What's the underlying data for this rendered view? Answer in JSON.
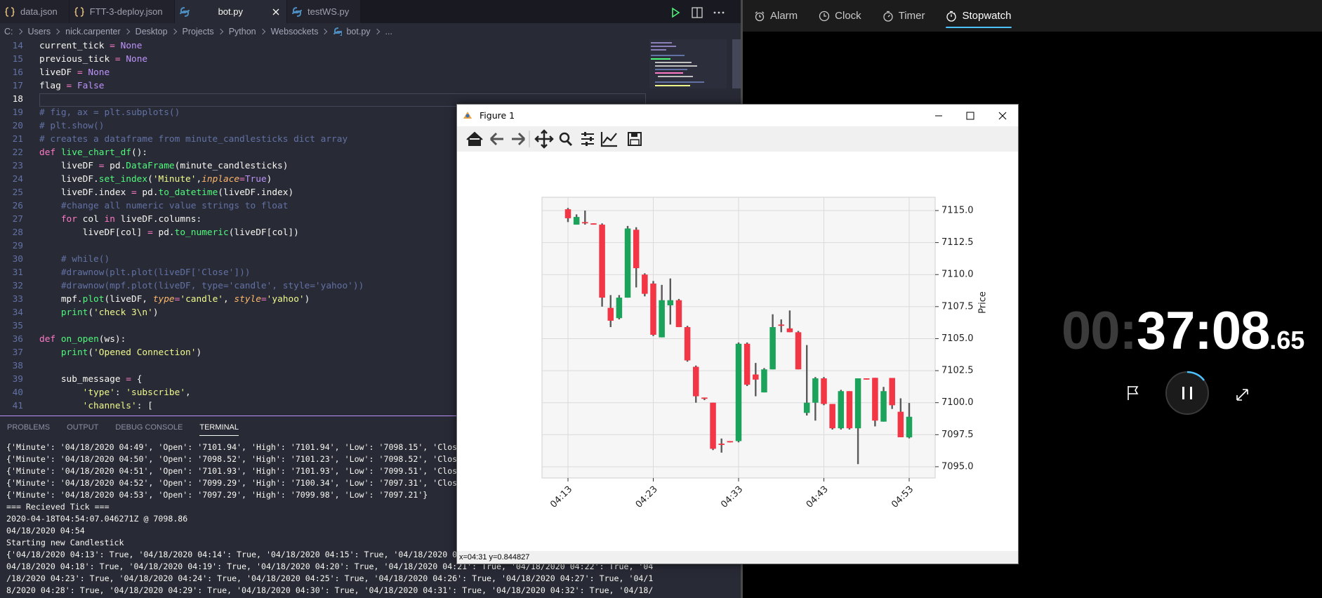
{
  "editor": {
    "tabs": [
      "data.json",
      "FTT-3-deploy.json",
      "bot.py",
      "testWS.py"
    ],
    "active_tab": 2,
    "breadcrumbs": [
      "C:",
      "Users",
      "nick.carpenter",
      "Desktop",
      "Projects",
      "Python",
      "Websockets",
      "bot.py",
      "..."
    ],
    "cursor_line": 18,
    "lines": [
      {
        "number": 14,
        "text": "current_tick = None"
      },
      {
        "number": 15,
        "text": "previous_tick = None"
      },
      {
        "number": 16,
        "text": "liveDF = None"
      },
      {
        "number": 17,
        "text": "flag = False"
      },
      {
        "number": 18
      },
      {
        "number": 19,
        "text": "# fig, ax = plt.subplots()"
      },
      {
        "number": 20,
        "text": "# plt.show()"
      },
      {
        "number": 21,
        "text": "# creates a dataframe from minute_candlesticks dict array"
      },
      {
        "number": 22,
        "text": "def live_chart_df():"
      },
      {
        "number": 23,
        "text": "    liveDF = pd.DataFrame(minute_candlesticks)"
      },
      {
        "number": 24,
        "text": "    liveDF.set_index('Minute',inplace=True)"
      },
      {
        "number": 25,
        "text": "    liveDF.index = pd.to_datetime(liveDF.index)"
      },
      {
        "number": 26,
        "text": "    #change all numeric value strings to float"
      },
      {
        "number": 27,
        "text": "    for col in liveDF.columns:"
      },
      {
        "number": 28,
        "text": "        liveDF[col] = pd.to_numeric(liveDF[col])"
      },
      {
        "number": 29
      },
      {
        "number": 30,
        "text": "    # while()"
      },
      {
        "number": 31,
        "text": "    #drawnow(plt.plot(liveDF['Close']))"
      },
      {
        "number": 32,
        "text": "    #drawnow(mpf.plot(liveDF, type='candle', style='yahoo'))"
      },
      {
        "number": 33,
        "text": "    mpf.plot(liveDF, type='candle', style='yahoo')"
      },
      {
        "number": 34,
        "text": "    print('check 3\\n')"
      },
      {
        "number": 35
      },
      {
        "number": 36,
        "text": "def on_open(ws):"
      },
      {
        "number": 37,
        "text": "    print('Opened Connection')"
      },
      {
        "number": 38
      },
      {
        "number": 39,
        "text": "    sub_message = {"
      },
      {
        "number": 40,
        "text": "        'type': 'subscribe',"
      },
      {
        "number": 41,
        "text": "        'channels': ["
      }
    ]
  },
  "panel": {
    "tabs": [
      "PROBLEMS",
      "OUTPUT",
      "DEBUG CONSOLE",
      "TERMINAL"
    ],
    "active_tab": 3,
    "terminal": [
      "{'Minute': '04/18/2020 04:49', 'Open': '7101.94', 'High': '7101.94', 'Low': '7098.15', 'Clos",
      "{'Minute': '04/18/2020 04:50', 'Open': '7098.52', 'High': '7101.23', 'Low': '7098.52', 'Clos",
      "{'Minute': '04/18/2020 04:51', 'Open': '7101.93', 'High': '7101.93', 'Low': '7099.51', 'Clos",
      "{'Minute': '04/18/2020 04:52', 'Open': '7099.29', 'High': '7100.34', 'Low': '7097.31', 'Clos",
      "{'Minute': '04/18/2020 04:53', 'Open': '7097.29', 'High': '7099.98', 'Low': '7097.21'}",
      "=== Recieved Tick ===",
      "2020-04-18T04:54:07.046271Z @ 7098.86",
      "04/18/2020 04:54",
      "Starting new Candlestick",
      "{'04/18/2020 04:13': True, '04/18/2020 04:14': True, '04/18/2020 04:15': True, '04/18/2020 0",
      "04/18/2020 04:18': True, '04/18/2020 04:19': True, '04/18/2020 04:20': True, '04/18/2020 04:21': True, '04/18/2020 04:22': True, '04",
      "/18/2020 04:23': True, '04/18/2020 04:24': True, '04/18/2020 04:25': True, '04/18/2020 04:26': True, '04/18/2020 04:27': True, '04/1",
      "8/2020 04:28': True, '04/18/2020 04:29': True, '04/18/2020 04:30': True, '04/18/2020 04:31': True, '04/18/2020 04:32': True, '04/18/"
    ]
  },
  "clock": {
    "tabs": [
      "Alarm",
      "Clock",
      "Timer",
      "Stopwatch"
    ],
    "active_tab": 3,
    "hours": "00:",
    "time": "37:08",
    "fraction": ".65"
  },
  "figure": {
    "title": "Figure 1",
    "status": "x=04:31 y=0.844827"
  },
  "chart_data": {
    "type": "candlestick",
    "ylabel": "Price",
    "categories": [
      "04:13",
      null,
      null,
      null,
      null,
      null,
      null,
      null,
      null,
      null,
      "04:23",
      null,
      null,
      null,
      null,
      null,
      null,
      null,
      null,
      null,
      "04:33",
      null,
      null,
      null,
      null,
      null,
      null,
      null,
      null,
      null,
      "04:43",
      null,
      null,
      null,
      null,
      null,
      null,
      null,
      null,
      null,
      "04:53"
    ],
    "open": [
      7115.1,
      7113.9,
      7114.1,
      7114.0,
      7113.9,
      7107.4,
      7106.6,
      7108.2,
      7113.5,
      7110.0,
      7109.3,
      7105.1,
      7107.6,
      7108.0,
      7105.9,
      7102.8,
      7100.4,
      7100.0,
      7096.8,
      7097.0,
      7097.0,
      7104.6,
      7102.2,
      7100.8,
      7102.6,
      7106.1,
      7105.8,
      7105.5,
      7099.2,
      7100.0,
      7101.9,
      7099.9,
      7098.0,
      7100.9,
      7098.0,
      7101.9,
      7101.94,
      7098.52,
      7101.93,
      7099.29,
      7097.29
    ],
    "high": [
      7115.2,
      7114.7,
      7115.0,
      7114.0,
      7114.0,
      7108.4,
      7108.4,
      7113.8,
      7113.7,
      7110.1,
      7109.5,
      7109.2,
      7109.7,
      7108.1,
      7106.0,
      7102.9,
      7100.4,
      7100.0,
      7097.2,
      7097.0,
      7104.7,
      7104.7,
      7103.1,
      7102.7,
      7106.9,
      7106.5,
      7107.2,
      7105.6,
      7104.5,
      7102.0,
      7102.0,
      7099.9,
      7101.0,
      7100.9,
      7101.9,
      7101.9,
      7101.94,
      7101.23,
      7101.93,
      7100.34,
      7099.98
    ],
    "low": [
      7114.1,
      7113.9,
      7113.9,
      7113.9,
      7107.5,
      7105.9,
      7106.5,
      7108.2,
      7109.0,
      7108.3,
      7105.2,
      7105.1,
      7106.1,
      7105.9,
      7103.2,
      7100.0,
      7100.2,
      7096.3,
      7096.1,
      7096.9,
      7096.9,
      7101.3,
      7100.5,
      7100.8,
      7102.6,
      7105.5,
      7105.5,
      7102.6,
      7099.0,
      7098.6,
      7099.8,
      7097.9,
      7097.9,
      7097.9,
      7095.2,
      7101.8,
      7098.15,
      7098.52,
      7099.51,
      7097.31,
      7097.21
    ],
    "close": [
      7114.4,
      7114.5,
      7114.0,
      7113.9,
      7108.2,
      7106.4,
      7108.2,
      7113.6,
      7110.5,
      7108.5,
      7105.3,
      7108.0,
      7108.0,
      7105.9,
      7103.3,
      7100.5,
      7100.3,
      7096.4,
      7096.7,
      7096.9,
      7104.6,
      7101.4,
      7101.8,
      7102.6,
      7105.9,
      7106.0,
      7105.5,
      7102.6,
      7100.0,
      7101.9,
      7099.9,
      7098.0,
      7100.9,
      7098.0,
      7101.9,
      7101.8,
      7098.6,
      7100.9,
      7099.8,
      7097.3,
      7098.9
    ],
    "up_color": "#1ca35b",
    "down_color": "#f23645",
    "wick_color": "#5a5a5a",
    "ylim": [
      7094.12,
      7116.04
    ],
    "yticks": [
      {
        "value": 7095,
        "label": "7095.0"
      },
      {
        "value": 7097.5,
        "label": "7097.5"
      },
      {
        "value": 7100,
        "label": "7100.0"
      },
      {
        "value": 7102.5,
        "label": "7102.5"
      },
      {
        "value": 7105,
        "label": "7105.0"
      },
      {
        "value": 7107.5,
        "label": "7107.5"
      },
      {
        "value": 7110,
        "label": "7110.0"
      },
      {
        "value": 7112.5,
        "label": "7112.5"
      },
      {
        "value": 7115,
        "label": "7115.0"
      }
    ],
    "grid": true
  }
}
